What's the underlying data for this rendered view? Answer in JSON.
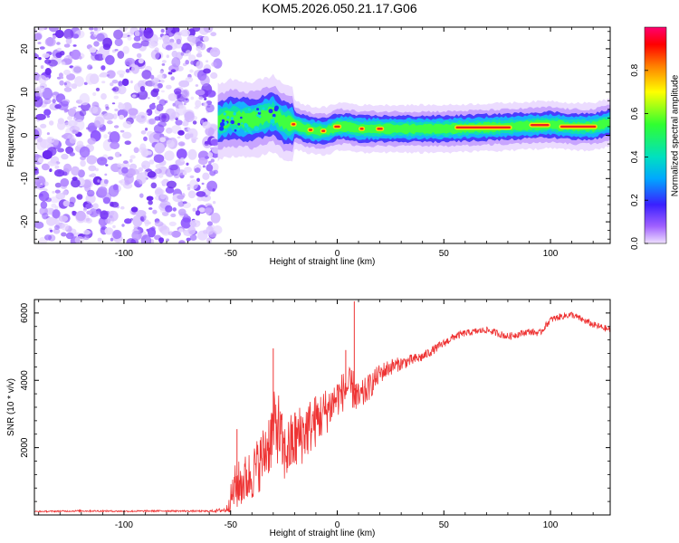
{
  "title": "KOM5.2026.050.21.17.G06",
  "chart_data": [
    {
      "type": "heatmap",
      "name": "spectrogram",
      "xlabel": "Height of straight line (km)",
      "ylabel": "Frequency (Hz)",
      "xlim": [
        -142,
        128
      ],
      "ylim": [
        -25,
        25
      ],
      "xticks": [
        -100,
        -50,
        0,
        50,
        100
      ],
      "yticks": [
        -20,
        -10,
        0,
        10,
        20
      ],
      "xtick_labels": [
        "-100",
        "-50",
        "0",
        "50",
        "100"
      ],
      "ytick_labels": [
        "-20",
        "-10",
        "0",
        "10",
        "20"
      ],
      "noise_region_x": [
        -142,
        -56
      ],
      "signal_ridge": {
        "x": [
          -56,
          -50,
          -40,
          -30,
          -25,
          -20,
          -15,
          -10,
          -5,
          0,
          5,
          10,
          15,
          20,
          30,
          50,
          80,
          100,
          110,
          120,
          128
        ],
        "freq": [
          3,
          4,
          3.5,
          5,
          3,
          2.5,
          1.5,
          1,
          1,
          2,
          2,
          1.5,
          1.5,
          1.5,
          1.5,
          1.5,
          2,
          2.5,
          2,
          2,
          3
        ]
      },
      "colorbar": {
        "label": "Normalized spectral amplitude",
        "range": [
          0,
          1
        ],
        "ticks": [
          0,
          0.2,
          0.4,
          0.6,
          0.8
        ],
        "tick_labels": [
          "0.0",
          "0.2",
          "0.4",
          "0.6",
          "0.8"
        ]
      }
    },
    {
      "type": "line",
      "name": "snr",
      "xlabel": "Height of straight line (km)",
      "ylabel": "SNR (10 * v/v)",
      "xlim": [
        -142,
        128
      ],
      "ylim": [
        0,
        6400
      ],
      "xticks": [
        -100,
        -50,
        0,
        50,
        100
      ],
      "yticks": [
        2000,
        4000,
        6000
      ],
      "xtick_labels": [
        "-100",
        "-50",
        "0",
        "50",
        "100"
      ],
      "ytick_labels": [
        "2000",
        "4000",
        "6000"
      ],
      "color": "#ee3333",
      "x": [
        -142,
        -120,
        -100,
        -80,
        -60,
        -52,
        -48,
        -40,
        -35,
        -30,
        -28,
        -25,
        -20,
        -15,
        -10,
        -5,
        0,
        5,
        8,
        10,
        15,
        20,
        25,
        30,
        40,
        50,
        55,
        60,
        70,
        80,
        90,
        95,
        100,
        105,
        110,
        115,
        120,
        128
      ],
      "y": [
        100,
        120,
        110,
        120,
        110,
        150,
        800,
        1200,
        1700,
        2500,
        2700,
        1800,
        2200,
        2500,
        2800,
        3100,
        3500,
        3800,
        3700,
        3400,
        3800,
        4200,
        4400,
        4500,
        4700,
        5100,
        5300,
        5400,
        5500,
        5300,
        5450,
        5400,
        5800,
        5900,
        5950,
        5800,
        5650,
        5500
      ],
      "spread": [
        20,
        25,
        25,
        25,
        25,
        80,
        700,
        800,
        900,
        1100,
        1200,
        900,
        1000,
        900,
        800,
        700,
        600,
        600,
        600,
        500,
        400,
        300,
        250,
        200,
        150,
        120,
        120,
        100,
        100,
        110,
        100,
        100,
        100,
        100,
        100,
        100,
        100,
        100
      ],
      "spikes": [
        {
          "x": -30,
          "y": 4950
        },
        {
          "x": -47,
          "y": 2550
        },
        {
          "x": 8,
          "y": 6350
        },
        {
          "x": 4,
          "y": 4900
        }
      ]
    }
  ]
}
